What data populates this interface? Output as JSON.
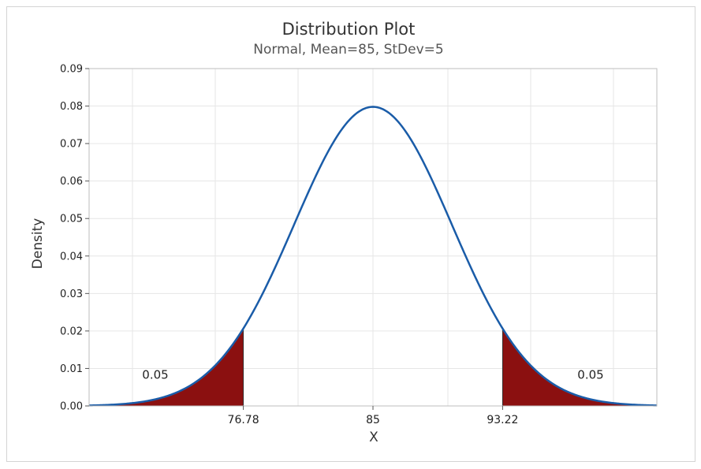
{
  "chart_data": {
    "type": "area",
    "distribution": "Normal",
    "mean": 85,
    "stdev": 5,
    "title": "Distribution Plot",
    "subtitle": "Normal, Mean=85, StDev=5",
    "xlabel": "X",
    "ylabel": "Density",
    "xlim": [
      67,
      103
    ],
    "ylim": [
      0,
      0.09
    ],
    "yticks": [
      0,
      0.01,
      0.02,
      0.03,
      0.04,
      0.05,
      0.06,
      0.07,
      0.08,
      0.09
    ],
    "ytick_labels": [
      "0.00",
      "0.01",
      "0.02",
      "0.03",
      "0.04",
      "0.05",
      "0.06",
      "0.07",
      "0.08",
      "0.09"
    ],
    "xticks": [
      76.78,
      85,
      93.22
    ],
    "xtick_labels": [
      "76.78",
      "85",
      "93.22"
    ],
    "x_grid": [
      69.75,
      75,
      80.25,
      85,
      89.75,
      95,
      100.25
    ],
    "shaded_regions": [
      {
        "from": 67,
        "to": 76.78,
        "area_label": "0.05",
        "label_x": 71.2,
        "label_y": 0.0073
      },
      {
        "from": 93.22,
        "to": 103,
        "area_label": "0.05",
        "label_x": 98.8,
        "label_y": 0.0073
      }
    ],
    "colors": {
      "curve": "#1a5ca8",
      "shaded": "#8b1010"
    },
    "grid": true
  }
}
